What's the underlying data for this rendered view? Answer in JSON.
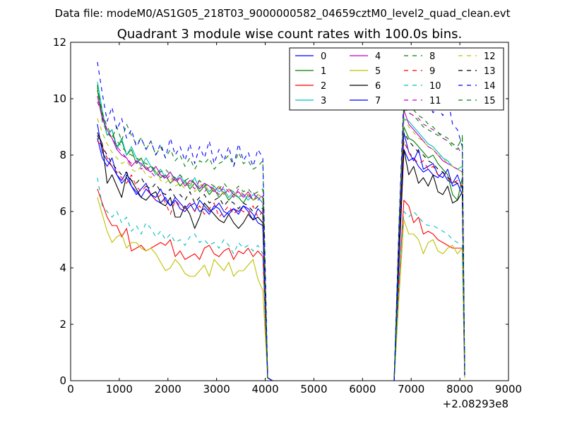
{
  "figure": {
    "suptitle": "Data file: modeM0/AS1G05_218T03_9000000582_04659cztM0_level2_quad_clean.evt",
    "title": "Quadrant 3 module wise count rates with 100.0s bins.",
    "offset_text": "+2.08293e8"
  },
  "chart_data": {
    "type": "line",
    "title": "Quadrant 3 module wise count rates with 100.0s bins.",
    "xlabel": "",
    "ylabel": "",
    "x_offset": 208293000,
    "xlim": [
      0,
      9000
    ],
    "ylim": [
      0,
      12
    ],
    "x_ticks": [
      0,
      1000,
      2000,
      3000,
      4000,
      5000,
      6000,
      7000,
      8000,
      9000
    ],
    "y_ticks": [
      0,
      2,
      4,
      6,
      8,
      10,
      12
    ],
    "grid": false,
    "legend": {
      "placement": "top-right",
      "columns": 4
    },
    "x": [
      550,
      650,
      750,
      850,
      950,
      1050,
      1150,
      1250,
      1350,
      1450,
      1550,
      1650,
      1750,
      1850,
      1950,
      2050,
      2150,
      2250,
      2350,
      2450,
      2550,
      2650,
      2750,
      2850,
      2950,
      3050,
      3150,
      3250,
      3350,
      3450,
      3550,
      3650,
      3750,
      3850,
      3950,
      4050,
      4150,
      6650,
      6750,
      6850,
      6950,
      7050,
      7150,
      7250,
      7350,
      7450,
      7550,
      7650,
      7750,
      7850,
      7950,
      8050,
      8100
    ],
    "series": [
      {
        "name": "0",
        "color": "#0000ff",
        "dash": "solid",
        "values": [
          9.1,
          8.1,
          7.8,
          7.6,
          7.3,
          7.0,
          7.2,
          6.9,
          6.7,
          6.5,
          6.8,
          6.6,
          6.4,
          6.3,
          6.5,
          6.2,
          6.4,
          6.1,
          6.0,
          6.2,
          6.3,
          6.0,
          6.1,
          5.9,
          6.2,
          6.1,
          5.8,
          6.0,
          6.1,
          5.9,
          6.2,
          6.0,
          5.7,
          6.1,
          5.9,
          0.1,
          0.0,
          0.0,
          4.5,
          8.2,
          7.8,
          7.9,
          7.6,
          7.4,
          7.5,
          7.3,
          7.2,
          7.4,
          7.1,
          7.0,
          7.3,
          6.8,
          0.2
        ]
      },
      {
        "name": "1",
        "color": "#008000",
        "dash": "solid",
        "values": [
          10.3,
          9.4,
          8.7,
          8.9,
          8.3,
          8.5,
          8.0,
          8.2,
          7.7,
          7.9,
          7.5,
          7.6,
          7.4,
          7.2,
          7.3,
          7.0,
          7.2,
          6.9,
          7.1,
          6.8,
          7.0,
          6.7,
          6.9,
          6.6,
          6.8,
          6.5,
          6.7,
          6.4,
          6.6,
          6.5,
          6.3,
          6.6,
          6.4,
          6.5,
          6.3,
          0.1,
          0.0,
          0.0,
          5.0,
          9.0,
          8.6,
          8.5,
          8.3,
          8.1,
          7.9,
          8.0,
          7.7,
          7.5,
          7.3,
          6.6,
          6.4,
          7.2,
          0.2
        ]
      },
      {
        "name": "2",
        "color": "#ff0000",
        "dash": "solid",
        "values": [
          6.8,
          6.3,
          5.8,
          5.5,
          5.5,
          5.1,
          5.4,
          4.6,
          4.7,
          4.8,
          4.6,
          4.7,
          4.8,
          4.9,
          4.8,
          5.0,
          4.4,
          4.6,
          4.3,
          4.4,
          4.5,
          4.3,
          4.7,
          4.8,
          4.5,
          4.4,
          4.6,
          4.7,
          4.3,
          4.6,
          4.5,
          4.7,
          4.4,
          4.6,
          4.4,
          0.1,
          0.0,
          0.0,
          3.5,
          6.4,
          6.2,
          5.6,
          5.8,
          5.2,
          5.3,
          5.2,
          5.0,
          4.9,
          4.8,
          4.7,
          4.7,
          4.7,
          0.1
        ]
      },
      {
        "name": "3",
        "color": "#00bfbf",
        "dash": "solid",
        "values": [
          10.6,
          9.6,
          8.7,
          8.9,
          8.2,
          8.6,
          8.0,
          8.3,
          7.9,
          7.6,
          7.9,
          7.6,
          7.3,
          7.5,
          7.2,
          7.4,
          7.1,
          7.3,
          7.0,
          6.9,
          7.2,
          6.8,
          7.0,
          6.7,
          6.9,
          6.7,
          6.8,
          6.5,
          6.7,
          6.5,
          6.6,
          6.4,
          6.6,
          6.5,
          6.3,
          0.1,
          0.0,
          0.0,
          5.2,
          9.3,
          9.2,
          9.0,
          8.8,
          8.6,
          8.4,
          8.3,
          8.1,
          7.9,
          7.8,
          7.6,
          7.5,
          7.6,
          0.2
        ]
      },
      {
        "name": "4",
        "color": "#bf00bf",
        "dash": "solid",
        "values": [
          10.1,
          9.3,
          8.9,
          8.6,
          8.2,
          8.0,
          7.9,
          7.6,
          7.8,
          7.7,
          7.5,
          7.4,
          7.6,
          7.3,
          7.2,
          7.4,
          7.1,
          7.2,
          6.9,
          7.1,
          7.0,
          6.8,
          7.0,
          6.9,
          6.7,
          6.9,
          6.6,
          6.8,
          6.6,
          6.7,
          6.5,
          6.7,
          6.4,
          6.6,
          6.5,
          0.1,
          0.0,
          0.0,
          5.3,
          9.6,
          9.1,
          8.9,
          8.7,
          8.5,
          8.3,
          8.2,
          8.0,
          7.8,
          7.7,
          7.6,
          7.5,
          7.4,
          0.2
        ]
      },
      {
        "name": "5",
        "color": "#bfbf00",
        "dash": "solid",
        "values": [
          6.5,
          5.9,
          5.3,
          4.9,
          5.1,
          5.2,
          4.7,
          4.9,
          4.9,
          4.7,
          4.6,
          4.7,
          4.5,
          4.2,
          3.9,
          4.0,
          4.3,
          4.1,
          3.8,
          3.7,
          3.7,
          3.9,
          4.1,
          3.7,
          4.3,
          4.1,
          3.9,
          4.2,
          3.7,
          3.9,
          3.9,
          4.1,
          4.3,
          3.6,
          3.2,
          0.1,
          0.0,
          0.0,
          3.0,
          5.7,
          5.2,
          5.2,
          5.0,
          4.5,
          4.9,
          5.0,
          4.6,
          4.5,
          4.7,
          4.8,
          4.5,
          4.7,
          0.1
        ]
      },
      {
        "name": "6",
        "color": "#000000",
        "dash": "solid",
        "values": [
          8.8,
          8.4,
          7.0,
          7.3,
          6.9,
          6.5,
          7.3,
          7.1,
          6.8,
          6.5,
          6.4,
          6.6,
          6.7,
          6.3,
          6.2,
          6.5,
          5.8,
          5.8,
          6.2,
          5.9,
          5.4,
          5.8,
          6.3,
          6.1,
          5.9,
          5.7,
          5.6,
          5.9,
          5.6,
          5.4,
          5.6,
          5.9,
          5.7,
          5.8,
          5.6,
          0.1,
          0.0,
          0.0,
          4.2,
          8.2,
          7.3,
          7.6,
          7.0,
          7.2,
          6.9,
          7.3,
          6.7,
          6.6,
          6.9,
          6.3,
          6.4,
          6.7,
          0.2
        ]
      },
      {
        "name": "7",
        "color": "#0000ff",
        "dash": "solid",
        "values": [
          8.6,
          7.9,
          7.6,
          7.9,
          7.3,
          7.1,
          7.4,
          6.9,
          6.6,
          6.8,
          7.0,
          6.6,
          6.5,
          6.8,
          6.4,
          6.2,
          6.5,
          6.3,
          6.1,
          6.3,
          6.0,
          6.4,
          6.2,
          6.0,
          6.1,
          6.3,
          6.0,
          5.9,
          6.1,
          6.0,
          6.2,
          6.1,
          5.9,
          5.6,
          5.5,
          0.1,
          0.0,
          0.0,
          4.4,
          8.8,
          8.1,
          7.8,
          8.2,
          7.5,
          7.6,
          7.7,
          7.3,
          7.2,
          7.5,
          6.9,
          7.0,
          6.6,
          0.2
        ]
      },
      {
        "name": "8",
        "color": "#008000",
        "dash": "dashed",
        "values": [
          10.5,
          9.2,
          8.8,
          8.6,
          9.0,
          8.5,
          9.1,
          8.7,
          8.4,
          8.6,
          8.2,
          8.5,
          8.0,
          8.3,
          7.9,
          8.2,
          7.8,
          8.0,
          7.6,
          7.9,
          7.5,
          7.8,
          7.7,
          7.9,
          7.5,
          7.7,
          7.8,
          8.0,
          7.6,
          8.1,
          7.7,
          7.8,
          7.5,
          7.6,
          7.8,
          0.1,
          0.0,
          0.0,
          5.4,
          9.6,
          9.5,
          9.4,
          9.2,
          9.0,
          8.9,
          8.8,
          8.7,
          8.6,
          8.5,
          8.3,
          8.2,
          8.7,
          0.2
        ]
      },
      {
        "name": "9",
        "color": "#ff0000",
        "dash": "dashed",
        "values": [
          8.5,
          8.3,
          7.9,
          7.6,
          7.4,
          7.2,
          7.0,
          7.3,
          6.9,
          6.7,
          6.9,
          6.6,
          6.4,
          6.6,
          6.3,
          5.9,
          6.4,
          6.2,
          6.1,
          6.3,
          6.0,
          6.2,
          5.9,
          6.1,
          6.3,
          5.8,
          6.0,
          6.2,
          5.9,
          6.1,
          6.0,
          5.9,
          6.2,
          5.8,
          6.0,
          0.1,
          0.0,
          0.0,
          4.6,
          8.5,
          8.1,
          7.9,
          7.7,
          7.8,
          7.5,
          7.6,
          7.3,
          7.4,
          7.2,
          7.0,
          7.1,
          6.9,
          0.2
        ]
      },
      {
        "name": "10",
        "color": "#00bfbf",
        "dash": "dashed",
        "values": [
          7.2,
          6.2,
          6.0,
          5.8,
          6.0,
          5.6,
          5.8,
          5.3,
          5.5,
          5.2,
          5.6,
          5.4,
          5.1,
          5.3,
          5.0,
          5.2,
          4.9,
          5.0,
          4.8,
          5.1,
          5.2,
          4.9,
          5.0,
          4.8,
          4.9,
          4.7,
          5.0,
          4.8,
          4.5,
          4.9,
          4.7,
          4.8,
          4.6,
          4.8,
          4.5,
          0.1,
          0.0,
          0.0,
          3.6,
          6.0,
          5.8,
          6.0,
          5.8,
          5.6,
          5.5,
          5.5,
          5.4,
          5.3,
          5.2,
          5.0,
          4.9,
          4.8,
          0.1
        ]
      },
      {
        "name": "11",
        "color": "#bf00bf",
        "dash": "dashed",
        "values": [
          9.9,
          9.4,
          8.9,
          8.6,
          8.3,
          8.1,
          7.9,
          7.7,
          7.8,
          7.5,
          7.6,
          7.4,
          7.2,
          7.4,
          7.1,
          7.3,
          7.0,
          7.2,
          6.9,
          7.0,
          6.8,
          7.1,
          6.7,
          6.9,
          6.8,
          6.6,
          6.9,
          6.7,
          6.5,
          6.8,
          6.6,
          6.5,
          6.7,
          6.4,
          6.6,
          0.1,
          0.0,
          0.0,
          5.3,
          9.7,
          9.5,
          9.4,
          9.3,
          9.1,
          9.0,
          8.9,
          8.8,
          8.6,
          8.5,
          8.4,
          8.3,
          8.0,
          0.2
        ]
      },
      {
        "name": "12",
        "color": "#bfbf00",
        "dash": "dashed",
        "values": [
          9.3,
          8.8,
          8.4,
          8.1,
          7.9,
          7.7,
          7.8,
          7.5,
          7.4,
          7.6,
          7.3,
          7.2,
          7.4,
          7.1,
          7.0,
          7.2,
          6.9,
          7.0,
          6.8,
          7.1,
          6.7,
          6.9,
          7.0,
          6.7,
          6.8,
          6.9,
          6.6,
          6.8,
          6.7,
          6.5,
          6.7,
          6.6,
          6.4,
          6.6,
          6.5,
          0.1,
          0.0,
          0.0,
          5.1,
          9.3,
          9.0,
          8.8,
          8.6,
          8.5,
          8.3,
          8.2,
          8.0,
          7.9,
          7.7,
          7.6,
          7.5,
          7.4,
          0.2
        ]
      },
      {
        "name": "13",
        "color": "#000000",
        "dash": "dashed",
        "values": [
          8.7,
          8.3,
          8.0,
          7.7,
          7.5,
          7.3,
          7.4,
          7.1,
          7.0,
          7.2,
          6.9,
          6.8,
          7.0,
          6.7,
          6.6,
          6.8,
          6.5,
          6.6,
          6.4,
          6.7,
          6.3,
          6.5,
          6.6,
          6.3,
          6.4,
          6.5,
          6.2,
          6.4,
          6.3,
          6.1,
          6.3,
          6.2,
          6.0,
          6.2,
          6.1,
          0.1,
          0.0,
          0.0,
          4.8,
          8.8,
          8.5,
          8.3,
          8.1,
          8.0,
          7.8,
          7.7,
          7.5,
          7.4,
          7.2,
          7.1,
          7.0,
          6.9,
          0.2
        ]
      },
      {
        "name": "14",
        "color": "#0000ff",
        "dash": "dashed",
        "values": [
          11.3,
          10.2,
          9.2,
          9.7,
          8.9,
          9.3,
          8.6,
          8.9,
          8.3,
          8.6,
          8.2,
          8.5,
          8.0,
          8.4,
          7.9,
          8.6,
          8.0,
          8.3,
          7.8,
          8.4,
          7.7,
          8.3,
          7.9,
          8.5,
          7.7,
          8.2,
          7.8,
          8.3,
          7.6,
          8.4,
          7.8,
          8.1,
          7.6,
          8.2,
          7.9,
          0.1,
          0.0,
          0.0,
          5.6,
          10.2,
          10.0,
          10.3,
          9.8,
          9.6,
          9.9,
          9.5,
          9.7,
          9.4,
          10.0,
          9.1,
          8.9,
          8.3,
          0.2
        ]
      },
      {
        "name": "15",
        "color": "#008000",
        "dash": "dashed",
        "values": [
          10.4,
          9.5,
          9.0,
          8.7,
          8.5,
          8.3,
          8.1,
          8.0,
          7.9,
          7.8,
          7.7,
          7.6,
          7.5,
          7.4,
          7.5,
          7.3,
          7.2,
          7.3,
          7.1,
          7.2,
          7.0,
          7.1,
          6.9,
          7.0,
          6.9,
          6.8,
          7.0,
          6.8,
          6.7,
          6.9,
          6.7,
          6.8,
          6.6,
          6.7,
          6.8,
          0.1,
          0.0,
          0.0,
          5.5,
          9.9,
          9.7,
          9.6,
          9.4,
          9.3,
          9.1,
          9.0,
          8.8,
          8.7,
          8.6,
          8.4,
          8.3,
          8.6,
          0.2
        ]
      }
    ]
  }
}
